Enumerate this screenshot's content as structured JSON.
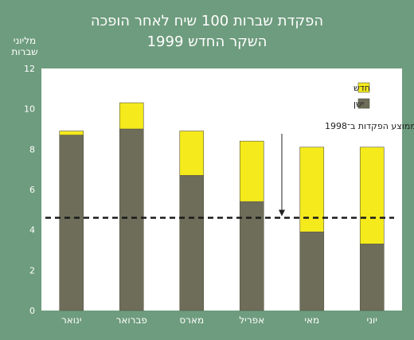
{
  "chart_data": {
    "type": "bar",
    "stacked": true,
    "title": "הפקדת שברות 100 שיח לאחר הופכה",
    "subtitle": "השקר החדש 1999",
    "ylabel": "מליוני שברות",
    "ylim": [
      0,
      12
    ],
    "yticks": [
      0,
      2,
      4,
      6,
      8,
      10,
      12
    ],
    "categories": [
      "ינואר",
      "פברואר",
      "מארס",
      "אפריל",
      "מאי",
      "יוני"
    ],
    "series": [
      {
        "name": "ישן",
        "color": "#6d6d5a",
        "values": [
          8.7,
          9.0,
          6.7,
          5.4,
          3.9,
          3.3
        ]
      },
      {
        "name": "חדש",
        "color": "#f5ea1c",
        "values": [
          0.2,
          1.3,
          2.2,
          3.0,
          4.2,
          4.8
        ]
      }
    ],
    "reference_line": {
      "label": "ממוצע הפקדות ב־1998",
      "value": 4.6
    },
    "legend_position": "top-right",
    "grid": false
  },
  "colors": {
    "background": "#6e9c7e",
    "plot_area": "#ffffff",
    "new": "#f5ea1c",
    "old": "#6d6d5a",
    "text": "#ffffff"
  }
}
